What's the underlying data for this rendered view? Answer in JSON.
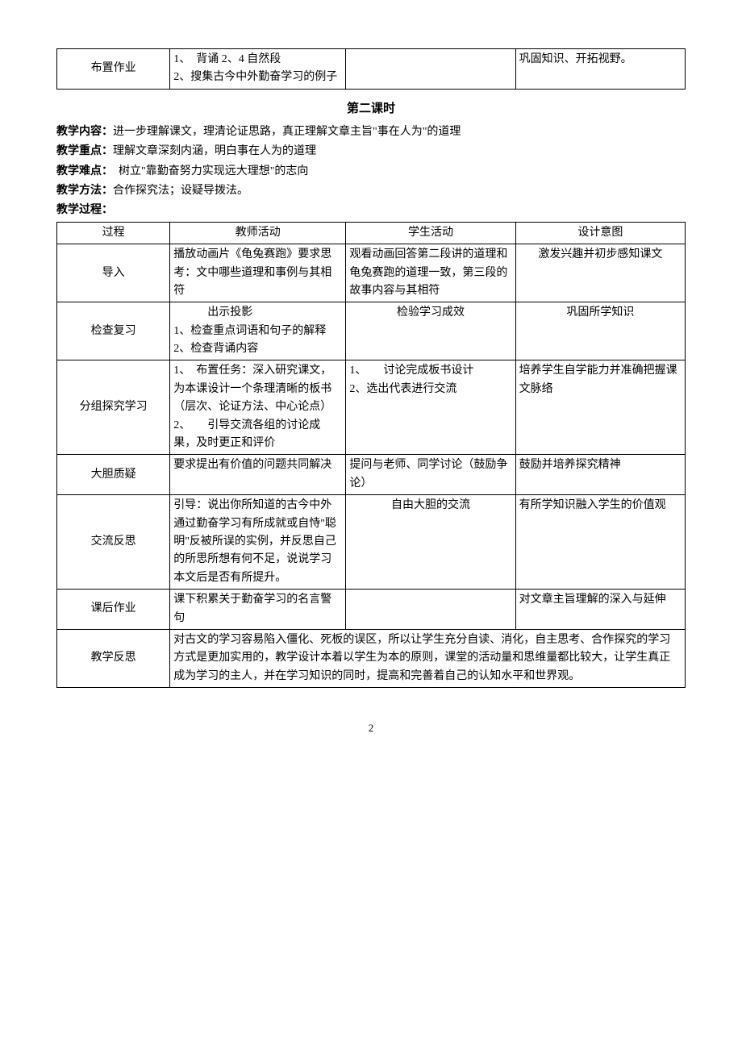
{
  "table1": {
    "row": {
      "c1": "布置作业",
      "c2": "1、　背诵 2、4 自然段\n2、搜集古今中外勤奋学习的例子",
      "c3": "",
      "c4": "巩固知识、开拓视野。"
    }
  },
  "lesson2": {
    "title": "第二课时",
    "content_label": "教学内容：",
    "content_text": "进一步理解课文，理清论证思路，真正理解文章主旨\"事在人为\"的道理",
    "focus_label": "教学重点：",
    "focus_text": "理解文章深刻内涵，明白事在人为的道理",
    "difficulty_label": "教学难点：",
    "difficulty_text": "　树立\"靠勤奋努力实现远大理想\"的志向",
    "method_label": "教学方法：",
    "method_text": "合作探究法；设疑导拨法。",
    "process_label": "教学过程："
  },
  "table2": {
    "header": {
      "c1": "过程",
      "c2": "教师活动",
      "c3": "学生活动",
      "c4": "设计意图"
    },
    "rows": [
      {
        "c1": "导入",
        "c2": "播放动画片《龟兔赛跑》要求思考：文中哪些道理和事例与其相符",
        "c3": "观看动画回答第二段讲的道理和龟兔赛跑的道理一致，第三段的故事内容与其相符",
        "c4": "激发兴趣并初步感知课文"
      },
      {
        "c1": "检查复习",
        "c2": "　　　出示投影\n1、检查重点词语和句子的解释\n2、检查背诵内容",
        "c3": "检验学习成效",
        "c4": "巩固所学知识"
      },
      {
        "c1": "分组探究学习",
        "c2": "1、　布置任务：深入研究课文，为本课设计一个条理清晰的板书（层次、论证方法、中心论点）\n2、　　引导交流各组的讨论成果，及时更正和评价",
        "c3": "1、　　讨论完成板书设计\n2、选出代表进行交流",
        "c4": "培养学生自学能力并准确把握课文脉络"
      },
      {
        "c1": "大胆质疑",
        "c2": "要求提出有价值的问题共同解决",
        "c3": "提问与老师、同学讨论（鼓励争论）",
        "c4": "鼓励并培养探究精神"
      },
      {
        "c1": "交流反思",
        "c2": "引导：说出你所知道的古今中外通过勤奋学习有所成就或自恃\"聪明\"反被所误的实例，并反思自己的所思所想有何不足，说说学习本文后是否有所提升。",
        "c3": "自由大胆的交流",
        "c4": "有所学知识融入学生的价值观"
      },
      {
        "c1": "课后作业",
        "c2": "课下积累关于勤奋学习的名言警句",
        "c3": "",
        "c4": "对文章主旨理解的深入与延伸"
      },
      {
        "c1": "教学反思",
        "merged": "对古文的学习容易陷入僵化、死板的误区，所以让学生充分自读、消化，自主思考、合作探究的学习方式是更加实用的，教学设计本着以学生为本的原则，课堂的活动量和思维量都比较大，让学生真正成为学习的主人，并在学习知识的同时，提高和完善着自己的认知水平和世界观。"
      }
    ]
  },
  "page_number": "2"
}
